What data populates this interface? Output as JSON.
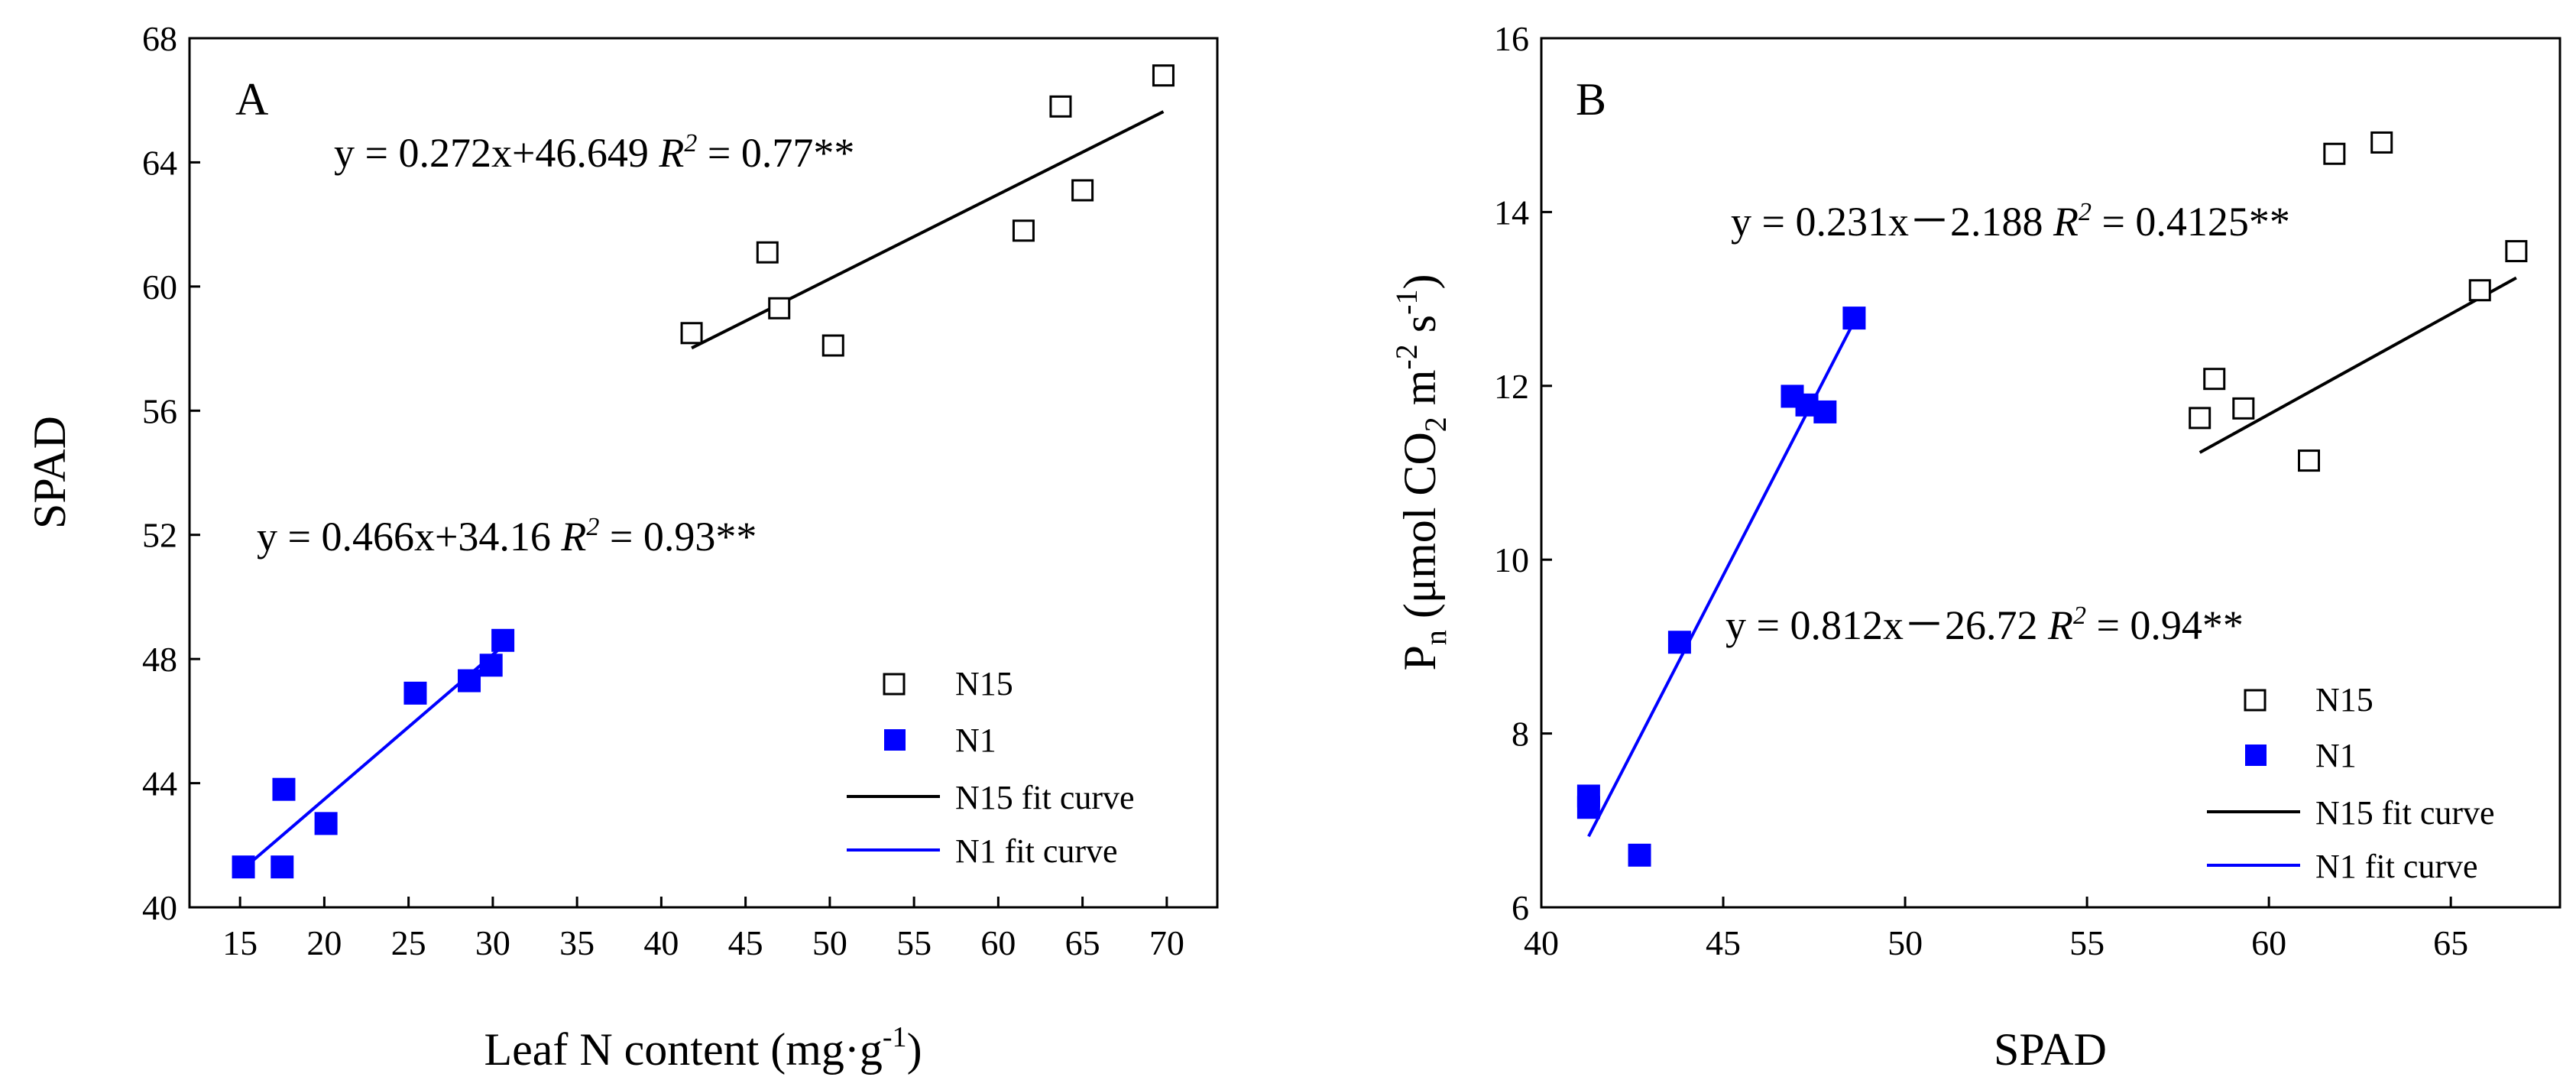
{
  "chart_data": [
    {
      "type": "scatter",
      "panel_label": "A",
      "xlabel": {
        "main": "Leaf N content (mg·g",
        "sup": "-1",
        "tail": ")"
      },
      "ylabel": "SPAD",
      "xlim": [
        12,
        73
      ],
      "ylim": [
        40,
        68
      ],
      "xticks": [
        15,
        20,
        25,
        30,
        35,
        40,
        45,
        50,
        55,
        60,
        65,
        70
      ],
      "yticks": [
        40,
        44,
        48,
        52,
        56,
        60,
        64,
        68
      ],
      "series": [
        {
          "name": "N15",
          "marker": "open-square",
          "color": "#000000",
          "x": [
            41.8,
            46.3,
            47.0,
            50.2,
            61.5,
            63.7,
            65.0,
            69.8
          ],
          "y": [
            58.5,
            61.1,
            59.3,
            58.1,
            61.8,
            65.8,
            63.1,
            66.8
          ]
        },
        {
          "name": "N1",
          "marker": "filled-square",
          "color": "#0000ff",
          "x": [
            15.2,
            17.5,
            17.6,
            20.1,
            25.4,
            28.6,
            29.9,
            30.6
          ],
          "y": [
            41.3,
            41.3,
            43.8,
            42.7,
            46.9,
            47.3,
            47.8,
            48.6
          ]
        }
      ],
      "fits": [
        {
          "name": "N15 fit curve",
          "color": "#000000",
          "slope": 0.272,
          "intercept": 46.649,
          "x_range": [
            41.8,
            69.8
          ]
        },
        {
          "name": "N1 fit curve",
          "color": "#0000ff",
          "slope": 0.466,
          "intercept": 34.16,
          "x_range": [
            15.2,
            30.6
          ]
        }
      ],
      "annotations": [
        {
          "prefix": "y = 0.272x+46.649 ",
          "r": "R",
          "r_sup": "2",
          "suffix": " = 0.77**"
        },
        {
          "prefix": "y = 0.466x+34.16 ",
          "r": "R",
          "r_sup": "2",
          "suffix": " = 0.93**"
        }
      ],
      "legend": [
        "N15",
        "N1",
        "N15 fit curve",
        "N1 fit curve"
      ],
      "legend_position": "bottom-right"
    },
    {
      "type": "scatter",
      "panel_label": "B",
      "xlabel": {
        "main": "SPAD"
      },
      "ylabel": {
        "p": "P",
        "p_sub": "n",
        "mid": " (μmol CO",
        "co2_sub": "2",
        "m": " m",
        "m_sup": "-2",
        "s": " s",
        "s_sup": "-1",
        "tail": ")"
      },
      "xlim": [
        40,
        68
      ],
      "ylim": [
        6,
        16
      ],
      "xticks": [
        40,
        45,
        50,
        55,
        60,
        65
      ],
      "yticks": [
        6,
        8,
        10,
        12,
        14,
        16
      ],
      "series": [
        {
          "name": "N15",
          "marker": "open-square",
          "color": "#000000",
          "x": [
            58.1,
            58.5,
            59.3,
            61.1,
            61.8,
            63.1,
            65.8,
            66.8
          ],
          "y": [
            11.63,
            12.08,
            11.74,
            11.14,
            14.67,
            14.8,
            13.1,
            13.55
          ]
        },
        {
          "name": "N1",
          "marker": "filled-square",
          "color": "#0000ff",
          "x": [
            41.3,
            41.3,
            42.7,
            43.8,
            46.9,
            47.3,
            47.8,
            48.6
          ],
          "y": [
            7.15,
            7.28,
            6.6,
            9.05,
            11.88,
            11.78,
            11.7,
            12.78
          ]
        }
      ],
      "fits": [
        {
          "name": "N15 fit curve",
          "color": "#000000",
          "slope": 0.231,
          "intercept": -2.188,
          "x_range": [
            58.1,
            66.8
          ]
        },
        {
          "name": "N1 fit curve",
          "color": "#0000ff",
          "slope": 0.812,
          "intercept": -26.72,
          "x_range": [
            41.3,
            48.6
          ]
        }
      ],
      "annotations": [
        {
          "prefix": "y = 0.231x－2.188 ",
          "r": "R",
          "r_sup": "2",
          "suffix": " = 0.4125**"
        },
        {
          "prefix": "y = 0.812x－26.72 ",
          "r": "R",
          "r_sup": "2",
          "suffix": " = 0.94**"
        }
      ],
      "legend": [
        "N15",
        "N1",
        "N15 fit curve",
        "N1 fit curve"
      ],
      "legend_position": "bottom-right"
    }
  ]
}
